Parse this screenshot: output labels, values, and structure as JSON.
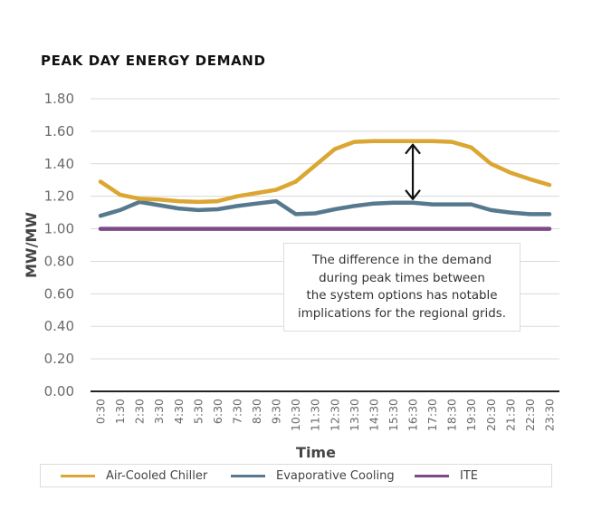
{
  "chart_data": {
    "type": "line",
    "title": "PEAK DAY ENERGY DEMAND",
    "xlabel": "Time",
    "ylabel": "MW/MW",
    "ylim": [
      0,
      1.8
    ],
    "yticks": [
      "0.00",
      "0.20",
      "0.40",
      "0.60",
      "0.80",
      "1.00",
      "1.20",
      "1.40",
      "1.60",
      "1.80"
    ],
    "ytick_values": [
      0,
      0.2,
      0.4,
      0.6,
      0.8,
      1.0,
      1.2,
      1.4,
      1.6,
      1.8
    ],
    "grid": true,
    "legend_position": "bottom",
    "categories": [
      "0:30",
      "1:30",
      "2:30",
      "3:30",
      "4:30",
      "5:30",
      "6:30",
      "7:30",
      "8:30",
      "9:30",
      "10:30",
      "11:30",
      "12:30",
      "13:30",
      "14:30",
      "15:30",
      "16:30",
      "17:30",
      "18:30",
      "19:30",
      "20:30",
      "21:30",
      "22:30",
      "23:30"
    ],
    "series": [
      {
        "name": "Air-Cooled Chiller",
        "color": "#DBA632",
        "values": [
          1.29,
          1.21,
          1.185,
          1.18,
          1.17,
          1.165,
          1.17,
          1.2,
          1.22,
          1.24,
          1.29,
          1.39,
          1.49,
          1.535,
          1.54,
          1.54,
          1.54,
          1.54,
          1.535,
          1.5,
          1.4,
          1.345,
          1.305,
          1.27
        ]
      },
      {
        "name": "Evaporative Cooling",
        "color": "#57798E",
        "values": [
          1.08,
          1.115,
          1.165,
          1.145,
          1.125,
          1.115,
          1.12,
          1.14,
          1.155,
          1.17,
          1.09,
          1.095,
          1.12,
          1.14,
          1.155,
          1.16,
          1.16,
          1.15,
          1.15,
          1.15,
          1.115,
          1.1,
          1.09,
          1.09
        ]
      },
      {
        "name": "ITE",
        "color": "#7B4A87",
        "values": [
          1.0,
          1.0,
          1.0,
          1.0,
          1.0,
          1.0,
          1.0,
          1.0,
          1.0,
          1.0,
          1.0,
          1.0,
          1.0,
          1.0,
          1.0,
          1.0,
          1.0,
          1.0,
          1.0,
          1.0,
          1.0,
          1.0,
          1.0,
          1.0
        ]
      }
    ],
    "annotations": [
      {
        "type": "double-arrow",
        "category": "16:30",
        "from_series": "Air-Cooled Chiller",
        "to_series": "Evaporative Cooling"
      },
      {
        "type": "text-box",
        "text": "The difference in the demand\nduring  peak times between\nthe system options has notable\nimplications for the regional grids."
      }
    ]
  }
}
